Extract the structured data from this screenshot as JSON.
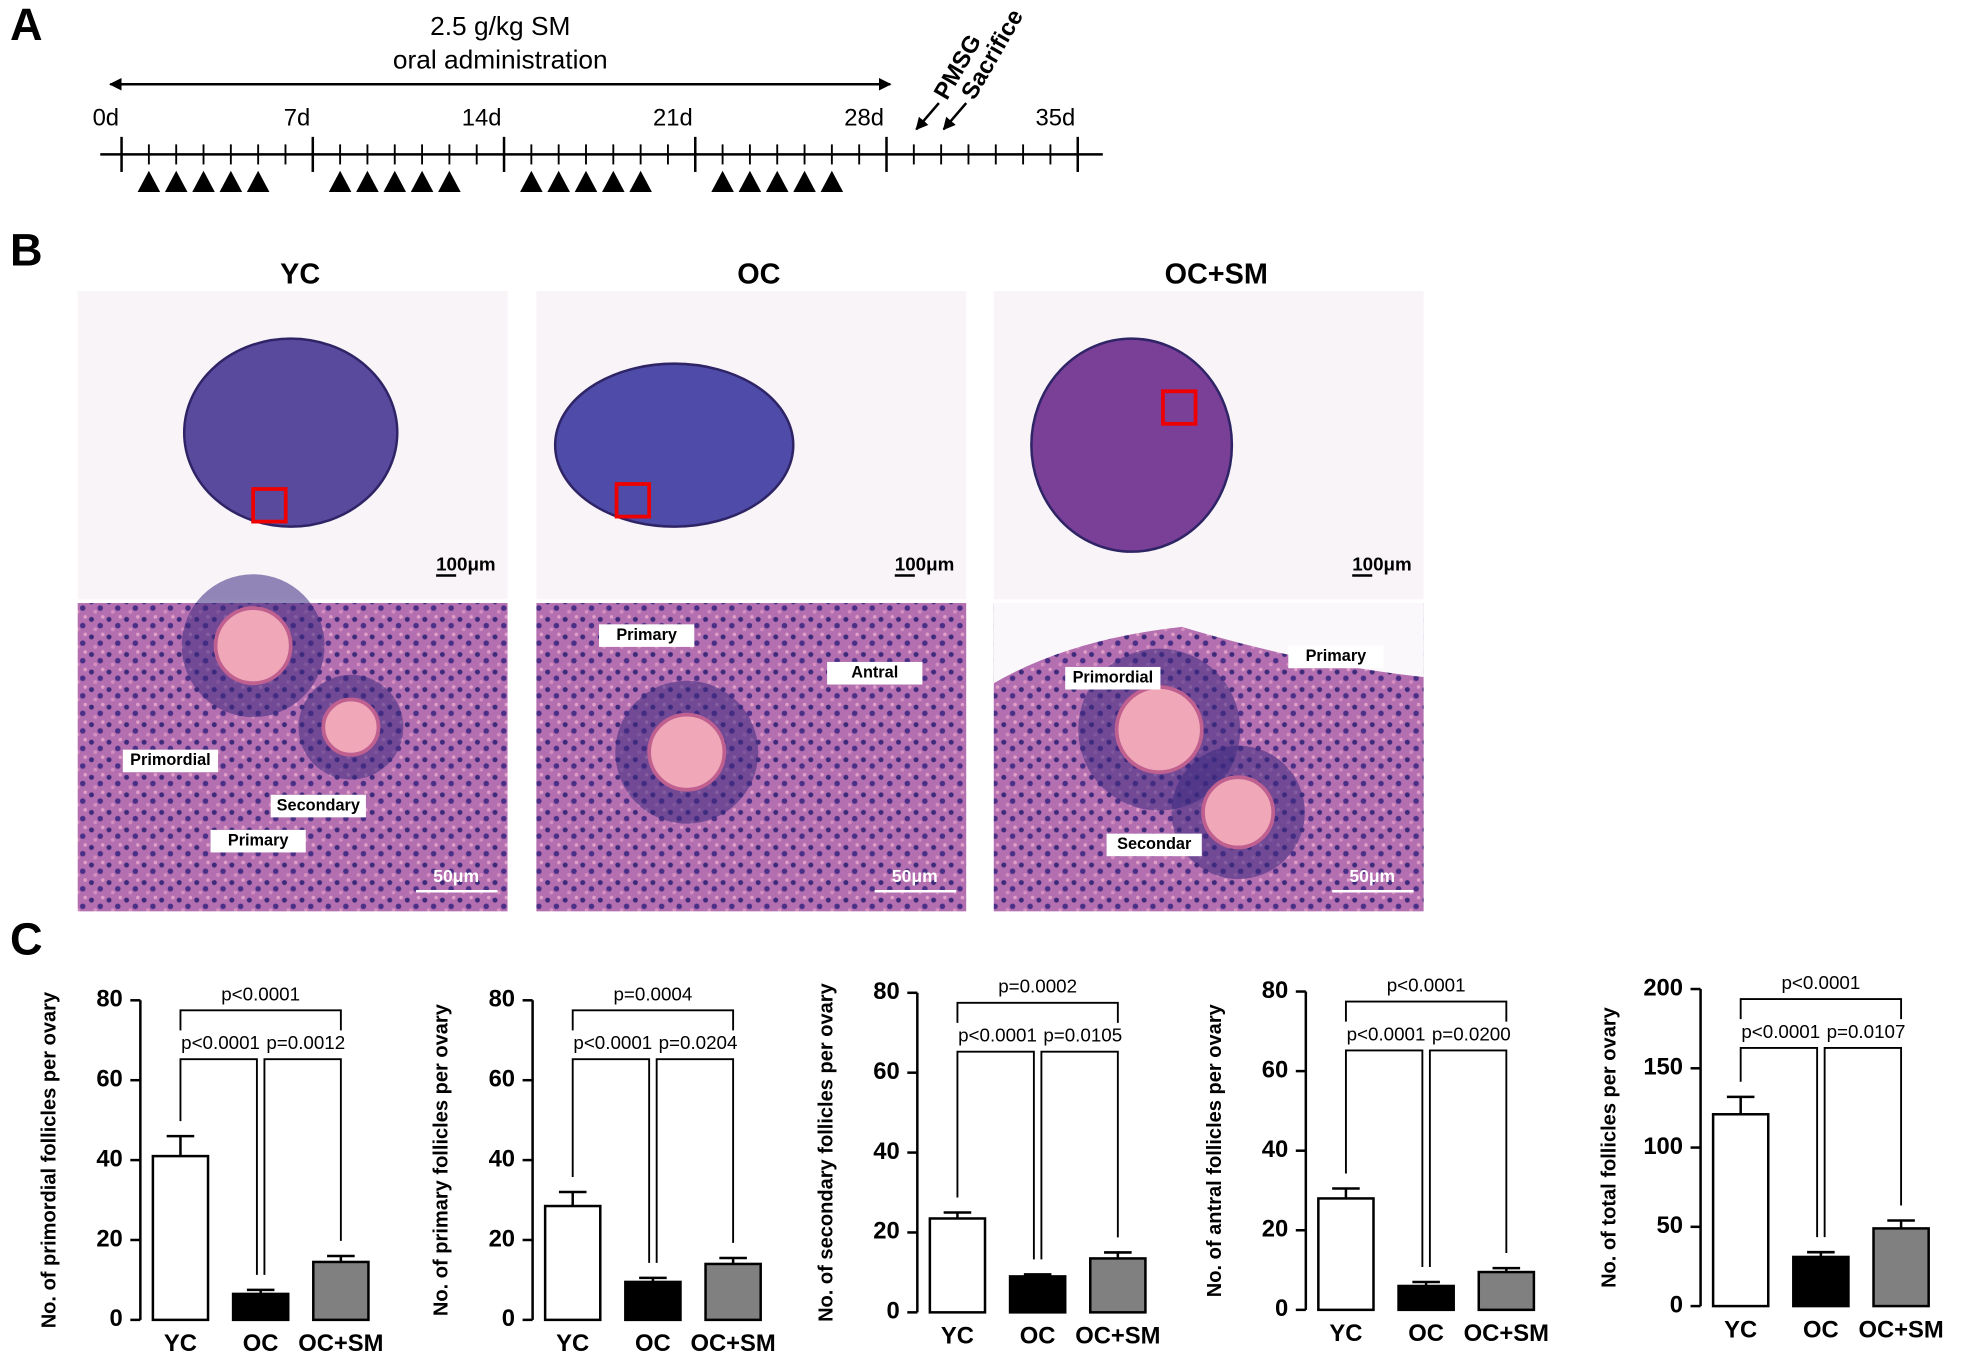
{
  "panel_labels": [
    "A",
    "B",
    "C"
  ],
  "timeline": {
    "title_lines": [
      "2.5 g/kg SM",
      "oral administration"
    ],
    "ticks": [
      {
        "value": 0,
        "label": "0d"
      },
      {
        "value": 7,
        "label": "7d"
      },
      {
        "value": 14,
        "label": "14d"
      },
      {
        "value": 21,
        "label": "21d"
      },
      {
        "value": 28,
        "label": "28d"
      },
      {
        "value": 35,
        "label": "35d"
      }
    ],
    "dose_days": [
      1,
      2,
      3,
      4,
      5,
      8,
      9,
      10,
      11,
      12,
      15,
      16,
      17,
      18,
      19,
      22,
      23,
      24,
      25,
      26
    ],
    "events": [
      {
        "label": "PMSG",
        "day": 29
      },
      {
        "label": "Sacrifice",
        "day": 30
      }
    ]
  },
  "histology": {
    "groups": [
      "YC",
      "OC",
      "OC+SM"
    ],
    "scale_top": [
      "100μm",
      "100μm",
      "100μm"
    ],
    "scale_bottom": [
      "50μm",
      "50μm",
      "50μm"
    ],
    "annotations": [
      [
        "Primordial",
        "Secondary",
        "Primary"
      ],
      [
        "Primary",
        "Antral"
      ],
      [
        "Primordial",
        "Primary",
        "Secondar"
      ]
    ]
  },
  "chart_data": [
    {
      "type": "bar",
      "y_label": "No. of primordial follicles per ovary",
      "categories": [
        "YC",
        "OC",
        "OC+SM"
      ],
      "values": [
        41,
        6.5,
        14.5
      ],
      "errors": [
        5,
        1,
        1.5
      ],
      "colors": [
        "#ffffff",
        "#000000",
        "#808080"
      ],
      "ylim": [
        0,
        80
      ],
      "yticks": [
        0,
        20,
        40,
        60,
        80
      ],
      "comparisons": [
        "p<0.0001",
        "p<0.0001",
        "p=0.0012"
      ]
    },
    {
      "type": "bar",
      "y_label": "No. of primary follicles per ovary",
      "categories": [
        "YC",
        "OC",
        "OC+SM"
      ],
      "values": [
        28.5,
        9.5,
        14
      ],
      "errors": [
        3.5,
        1,
        1.5
      ],
      "colors": [
        "#ffffff",
        "#000000",
        "#808080"
      ],
      "ylim": [
        0,
        80
      ],
      "yticks": [
        0,
        20,
        40,
        60,
        80
      ],
      "comparisons": [
        "p=0.0004",
        "p<0.0001",
        "p=0.0204"
      ]
    },
    {
      "type": "bar",
      "y_label": "No. of secondary follicles per ovary",
      "categories": [
        "YC",
        "OC",
        "OC+SM"
      ],
      "values": [
        23.5,
        9,
        13.5
      ],
      "errors": [
        1.5,
        0.5,
        1.5
      ],
      "colors": [
        "#ffffff",
        "#000000",
        "#808080"
      ],
      "ylim": [
        0,
        80
      ],
      "yticks": [
        0,
        20,
        40,
        60,
        80
      ],
      "comparisons": [
        "p=0.0002",
        "p<0.0001",
        "p=0.0105"
      ]
    },
    {
      "type": "bar",
      "y_label": "No. of antral follicles per ovary",
      "categories": [
        "YC",
        "OC",
        "OC+SM"
      ],
      "values": [
        28,
        6,
        9.5
      ],
      "errors": [
        2.5,
        1,
        1
      ],
      "colors": [
        "#ffffff",
        "#000000",
        "#808080"
      ],
      "ylim": [
        0,
        80
      ],
      "yticks": [
        0,
        20,
        40,
        60,
        80
      ],
      "comparisons": [
        "p<0.0001",
        "p<0.0001",
        "p=0.0200"
      ]
    },
    {
      "type": "bar",
      "y_label": "No. of total follicles per ovary",
      "categories": [
        "YC",
        "OC",
        "OC+SM"
      ],
      "values": [
        121,
        31,
        49
      ],
      "errors": [
        11,
        3,
        5
      ],
      "colors": [
        "#ffffff",
        "#000000",
        "#808080"
      ],
      "ylim": [
        0,
        200
      ],
      "yticks": [
        0,
        50,
        100,
        150,
        200
      ],
      "comparisons": [
        "p<0.0001",
        "p<0.0001",
        "p=0.0107"
      ]
    }
  ]
}
